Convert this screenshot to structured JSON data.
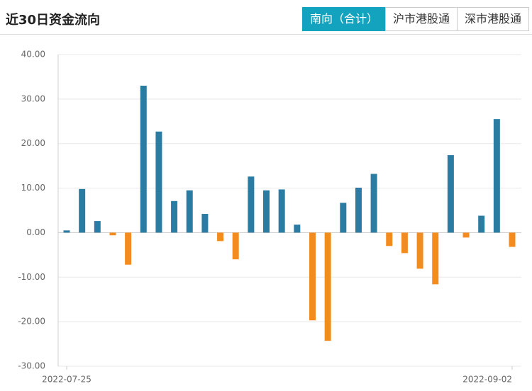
{
  "header": {
    "title": "近30日资金流向",
    "tabs": [
      {
        "label": "南向（合计）",
        "active": true
      },
      {
        "label": "沪市港股通",
        "active": false
      },
      {
        "label": "深市港股通",
        "active": false
      }
    ]
  },
  "chart_data": {
    "type": "bar",
    "categories": [
      "2022-07-25",
      null,
      null,
      null,
      null,
      null,
      null,
      null,
      null,
      null,
      null,
      null,
      null,
      null,
      null,
      null,
      null,
      null,
      null,
      null,
      null,
      null,
      null,
      null,
      null,
      null,
      null,
      null,
      null,
      "2022-09-02"
    ],
    "values": [
      0.5,
      9.8,
      2.6,
      -0.6,
      -7.2,
      33.0,
      22.7,
      7.1,
      9.5,
      4.2,
      -1.9,
      -6.0,
      12.6,
      9.5,
      9.7,
      1.8,
      -19.7,
      -24.3,
      6.7,
      10.1,
      13.2,
      -3.0,
      -4.6,
      -8.1,
      -11.6,
      17.4,
      -1.1,
      3.8,
      25.5,
      -3.2
    ],
    "positive_color": "#2b7ca3",
    "negative_color": "#f38b1f",
    "ylim": [
      -30,
      40
    ],
    "yticks": [
      {
        "value": -30,
        "label": "-30.00"
      },
      {
        "value": -20,
        "label": "-20.00"
      },
      {
        "value": -10,
        "label": "-10.00"
      },
      {
        "value": 0,
        "label": "0.00"
      },
      {
        "value": 10,
        "label": "10.00"
      },
      {
        "value": 20,
        "label": "20.00"
      },
      {
        "value": 30,
        "label": "30.00"
      },
      {
        "value": 40,
        "label": "40.00"
      }
    ],
    "grid": true
  }
}
